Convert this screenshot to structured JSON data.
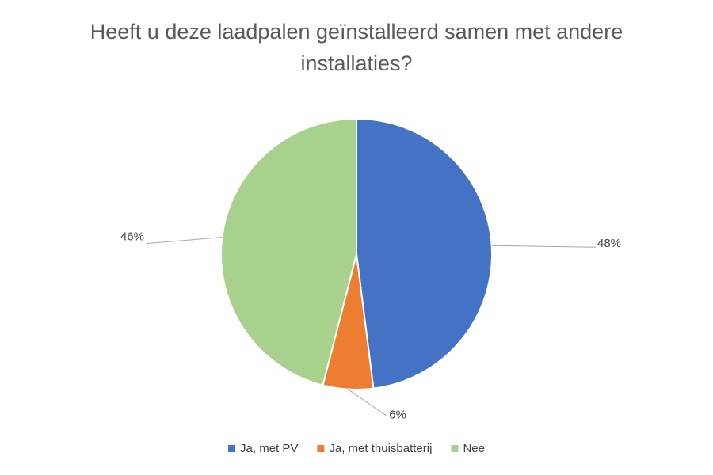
{
  "chart_data": {
    "type": "pie",
    "title": "Heeft u deze laadpalen geïnstalleerd samen met andere installaties?",
    "categories": [
      "Ja, met PV",
      "Ja, met thuisbatterij",
      "Nee"
    ],
    "values": [
      48,
      6,
      46
    ],
    "value_labels": [
      "48%",
      "6%",
      "46%"
    ],
    "colors": [
      "#4472c4",
      "#ed7d31",
      "#a9d18e"
    ],
    "legend": "bottom"
  }
}
